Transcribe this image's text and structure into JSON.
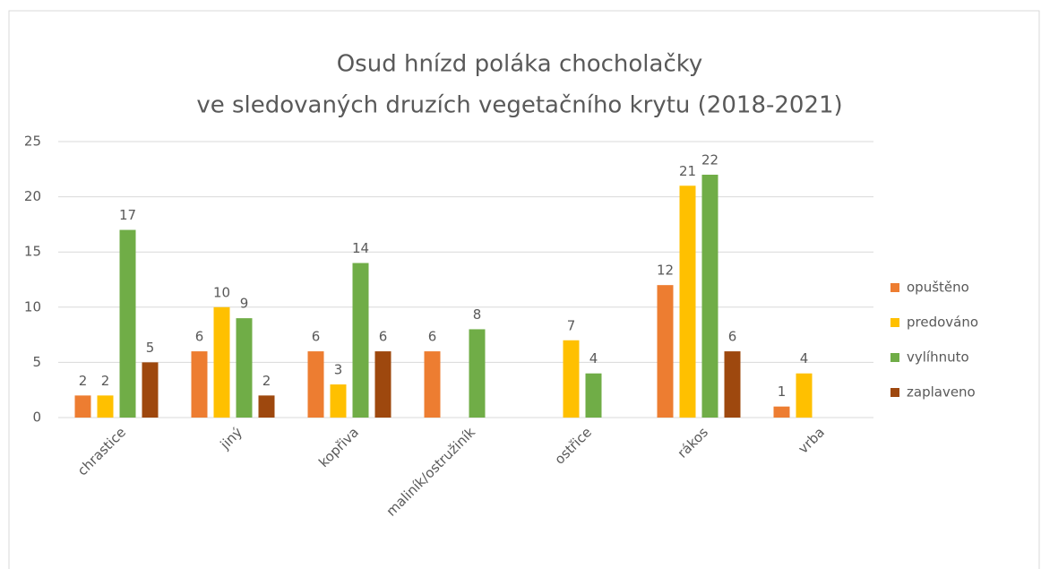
{
  "chart_data": {
    "type": "bar",
    "title": [
      "Osud hnízd poláka chocholačky",
      "ve sledovaných druzích vegetačního krytu (2018-2021)"
    ],
    "categories": [
      "chrastice",
      "jiný",
      "kopřiva",
      "maliník/ostružiník",
      "ostřice",
      "rákos",
      "vrba"
    ],
    "series": [
      {
        "name": "opuštěno",
        "color": "#ed7d31",
        "values": [
          2,
          6,
          6,
          6,
          null,
          12,
          1
        ]
      },
      {
        "name": "predováno",
        "color": "#ffc000",
        "values": [
          2,
          10,
          3,
          null,
          7,
          21,
          4
        ]
      },
      {
        "name": "vylíhnuto",
        "color": "#70ad47",
        "values": [
          17,
          9,
          14,
          8,
          4,
          22,
          null
        ]
      },
      {
        "name": "zaplaveno",
        "color": "#9e480e",
        "values": [
          5,
          2,
          6,
          null,
          null,
          6,
          null
        ]
      }
    ],
    "ylim": [
      0,
      25
    ],
    "yticks": [
      0,
      5,
      10,
      15,
      20,
      25
    ],
    "grid": true,
    "legend": "right"
  }
}
